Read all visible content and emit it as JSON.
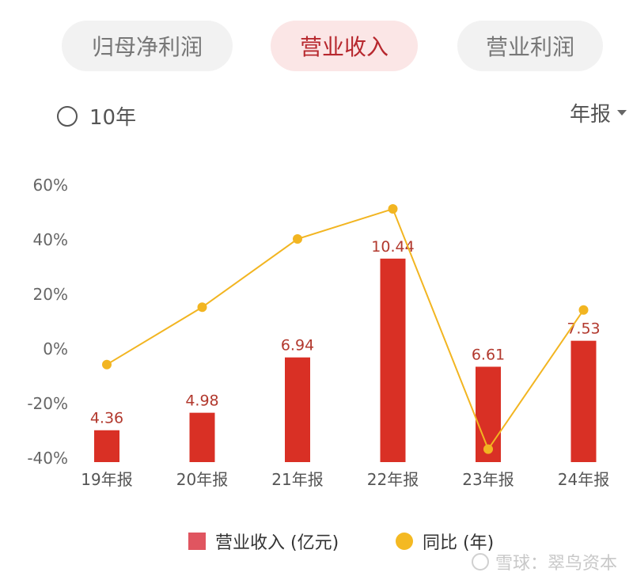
{
  "tabs": [
    {
      "label": "归母净利润",
      "active": false
    },
    {
      "label": "营业收入",
      "active": true
    },
    {
      "label": "营业利润",
      "active": false
    }
  ],
  "range_toggle": {
    "label": "10年",
    "checked": false
  },
  "period_select": {
    "value": "年报"
  },
  "colors": {
    "bar": "#d93025",
    "bar_label": "#b2392e",
    "line": "#f2b521",
    "legend_bar": "#e05560"
  },
  "chart_data": {
    "type": "bar",
    "categories": [
      "19年报",
      "20年报",
      "21年报",
      "22年报",
      "23年报",
      "24年报"
    ],
    "series": [
      {
        "name": "营业收入 (亿元)",
        "type": "bar",
        "values": [
          4.36,
          4.98,
          6.94,
          10.44,
          6.61,
          7.53
        ],
        "labels": [
          "4.36",
          "4.98",
          "6.94",
          "10.44",
          "6.61",
          "7.53"
        ]
      },
      {
        "name": "同比 (年)",
        "type": "line",
        "values": [
          -6,
          15,
          40,
          51,
          -37,
          14
        ]
      }
    ],
    "y_axis": {
      "min": -40,
      "max": 60,
      "ticks": [
        "60%",
        "40%",
        "20%",
        "0%",
        "-20%",
        "-40%"
      ],
      "tick_values": [
        60,
        40,
        20,
        0,
        -20,
        -40
      ]
    },
    "grid": false,
    "legend_position": "bottom"
  },
  "watermark": "雪球：翠鸟资本"
}
